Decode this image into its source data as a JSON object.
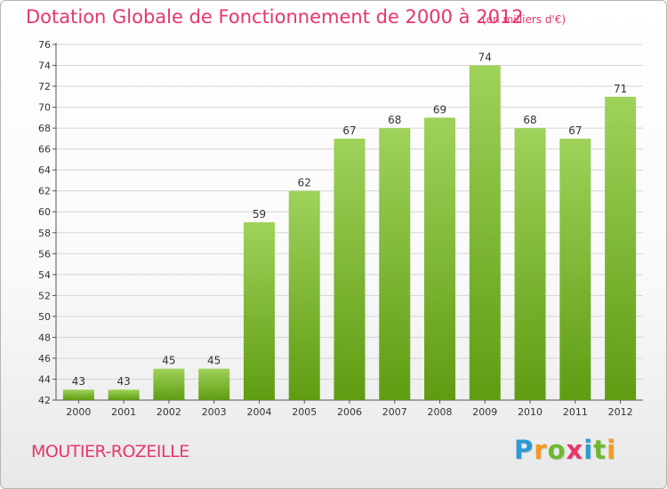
{
  "title": "Dotation Globale de Fonctionnement de 2000 à 2012",
  "unit_note": "(en milliers d'€)",
  "commune": "MOUTIER-ROZEILLE",
  "logo": {
    "letters": [
      "P",
      "r",
      "o",
      "x",
      "i",
      "t",
      "i"
    ],
    "colors": [
      "#2a9bd6",
      "#f39a1f",
      "#6cb92d",
      "#e8366a",
      "#2a9bd6",
      "#6cb92d",
      "#f39a1f"
    ]
  },
  "colors": {
    "bar_top": "#9fd25a",
    "bar_bottom": "#5f9c12",
    "title": "#e8366a",
    "grid": "#d4d4d4",
    "axis_text": "#333333"
  },
  "chart_data": {
    "type": "bar",
    "title": "Dotation Globale de Fonctionnement de 2000 à 2012",
    "categories": [
      "2000",
      "2001",
      "2002",
      "2003",
      "2004",
      "2005",
      "2006",
      "2007",
      "2008",
      "2009",
      "2010",
      "2011",
      "2012"
    ],
    "values": [
      43,
      43,
      45,
      45,
      59,
      62,
      67,
      68,
      69,
      74,
      68,
      67,
      71
    ],
    "ylim": [
      42,
      76
    ],
    "yticks": [
      42,
      44,
      46,
      48,
      50,
      52,
      54,
      56,
      58,
      60,
      62,
      64,
      66,
      68,
      70,
      72,
      74,
      76
    ],
    "grid": true,
    "data_labels": true,
    "xlabel": "",
    "ylabel": ""
  }
}
